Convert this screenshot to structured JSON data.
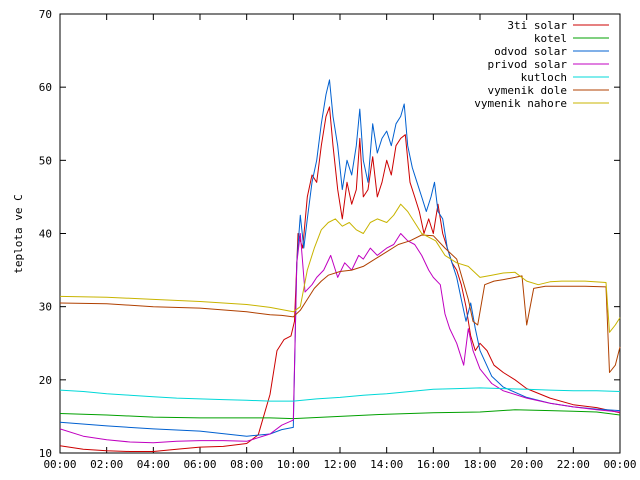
{
  "chart_data": {
    "type": "line",
    "ylabel": "teplota ve C",
    "xlabel": "",
    "xlim": [
      0,
      24
    ],
    "ylim": [
      10,
      70
    ],
    "legend_position": "top-right",
    "grid": false,
    "x_ticks": [
      {
        "value": 0,
        "label": "00:00"
      },
      {
        "value": 2,
        "label": "02:00"
      },
      {
        "value": 4,
        "label": "04:00"
      },
      {
        "value": 6,
        "label": "06:00"
      },
      {
        "value": 8,
        "label": "08:00"
      },
      {
        "value": 10,
        "label": "10:00"
      },
      {
        "value": 12,
        "label": "12:00"
      },
      {
        "value": 14,
        "label": "14:00"
      },
      {
        "value": 16,
        "label": "16:00"
      },
      {
        "value": 18,
        "label": "18:00"
      },
      {
        "value": 20,
        "label": "20:00"
      },
      {
        "value": 22,
        "label": "22:00"
      },
      {
        "value": 24,
        "label": "00:00"
      }
    ],
    "y_ticks": [
      10,
      20,
      30,
      40,
      50,
      60,
      70
    ],
    "series": [
      {
        "name": "3ti solar",
        "color": "#cc0000",
        "points": [
          [
            0,
            11.0
          ],
          [
            1,
            10.5
          ],
          [
            2,
            10.3
          ],
          [
            3,
            10.2
          ],
          [
            4,
            10.2
          ],
          [
            5,
            10.5
          ],
          [
            6,
            10.8
          ],
          [
            7,
            10.9
          ],
          [
            8,
            11.3
          ],
          [
            8.5,
            12.5
          ],
          [
            9,
            18
          ],
          [
            9.3,
            24
          ],
          [
            9.6,
            25.5
          ],
          [
            9.9,
            26
          ],
          [
            10.05,
            28
          ],
          [
            10.2,
            40
          ],
          [
            10.4,
            38
          ],
          [
            10.6,
            45
          ],
          [
            10.8,
            48
          ],
          [
            11.0,
            47
          ],
          [
            11.2,
            52
          ],
          [
            11.4,
            56
          ],
          [
            11.55,
            57.3
          ],
          [
            11.7,
            52
          ],
          [
            11.9,
            46
          ],
          [
            12.1,
            42
          ],
          [
            12.3,
            47
          ],
          [
            12.5,
            44
          ],
          [
            12.7,
            46
          ],
          [
            12.85,
            53
          ],
          [
            13.0,
            45
          ],
          [
            13.2,
            46
          ],
          [
            13.4,
            50.5
          ],
          [
            13.6,
            45
          ],
          [
            13.8,
            47
          ],
          [
            14.0,
            50
          ],
          [
            14.2,
            48
          ],
          [
            14.4,
            52
          ],
          [
            14.6,
            53
          ],
          [
            14.8,
            53.5
          ],
          [
            15.0,
            47
          ],
          [
            15.2,
            45
          ],
          [
            15.4,
            43
          ],
          [
            15.6,
            40
          ],
          [
            15.8,
            42
          ],
          [
            16.0,
            40
          ],
          [
            16.2,
            44
          ],
          [
            16.4,
            40
          ],
          [
            16.6,
            38
          ],
          [
            16.8,
            36
          ],
          [
            17.0,
            35
          ],
          [
            17.2,
            33
          ],
          [
            17.4,
            30
          ],
          [
            17.6,
            26
          ],
          [
            17.8,
            24
          ],
          [
            18.0,
            25
          ],
          [
            18.3,
            24
          ],
          [
            18.6,
            22
          ],
          [
            19,
            21
          ],
          [
            19.5,
            20
          ],
          [
            20,
            18.8
          ],
          [
            21,
            17.5
          ],
          [
            22,
            16.6
          ],
          [
            23,
            16.2
          ],
          [
            24,
            15.5
          ]
        ]
      },
      {
        "name": "kotel",
        "color": "#00a000",
        "points": [
          [
            0,
            15.4
          ],
          [
            2,
            15.2
          ],
          [
            4,
            14.9
          ],
          [
            6,
            14.8
          ],
          [
            8,
            14.8
          ],
          [
            9,
            14.8
          ],
          [
            10,
            14.7
          ],
          [
            12,
            15.0
          ],
          [
            14,
            15.3
          ],
          [
            16,
            15.5
          ],
          [
            18,
            15.6
          ],
          [
            19.5,
            15.9
          ],
          [
            21,
            15.8
          ],
          [
            22,
            15.7
          ],
          [
            23,
            15.6
          ],
          [
            24,
            15.2
          ]
        ]
      },
      {
        "name": "odvod solar",
        "color": "#0060d0",
        "points": [
          [
            0,
            14.2
          ],
          [
            2,
            13.7
          ],
          [
            4,
            13.3
          ],
          [
            6,
            13.0
          ],
          [
            8,
            12.3
          ],
          [
            9,
            12.6
          ],
          [
            9.5,
            13.2
          ],
          [
            10.0,
            13.5
          ],
          [
            10.15,
            36
          ],
          [
            10.3,
            42.5
          ],
          [
            10.45,
            38
          ],
          [
            10.6,
            42
          ],
          [
            10.8,
            47
          ],
          [
            11.0,
            50
          ],
          [
            11.2,
            55
          ],
          [
            11.4,
            59
          ],
          [
            11.55,
            61
          ],
          [
            11.7,
            56
          ],
          [
            11.9,
            52
          ],
          [
            12.1,
            46
          ],
          [
            12.3,
            50
          ],
          [
            12.5,
            48
          ],
          [
            12.7,
            52
          ],
          [
            12.85,
            57
          ],
          [
            13.0,
            50
          ],
          [
            13.2,
            47
          ],
          [
            13.4,
            55
          ],
          [
            13.6,
            51
          ],
          [
            13.8,
            53
          ],
          [
            14.0,
            54
          ],
          [
            14.2,
            52
          ],
          [
            14.4,
            55
          ],
          [
            14.6,
            56
          ],
          [
            14.75,
            57.7
          ],
          [
            14.9,
            52
          ],
          [
            15.1,
            49
          ],
          [
            15.3,
            47
          ],
          [
            15.5,
            45
          ],
          [
            15.7,
            43
          ],
          [
            15.9,
            45
          ],
          [
            16.05,
            47
          ],
          [
            16.2,
            43
          ],
          [
            16.4,
            42
          ],
          [
            16.6,
            38
          ],
          [
            16.8,
            36
          ],
          [
            17.0,
            34
          ],
          [
            17.2,
            31
          ],
          [
            17.4,
            28
          ],
          [
            17.6,
            30.5
          ],
          [
            17.8,
            27
          ],
          [
            18.0,
            24
          ],
          [
            18.5,
            20.5
          ],
          [
            19,
            19
          ],
          [
            20,
            17.6
          ],
          [
            21,
            16.8
          ],
          [
            22,
            16.3
          ],
          [
            23,
            16.0
          ],
          [
            24,
            15.8
          ]
        ]
      },
      {
        "name": "privod solar",
        "color": "#c000c0",
        "points": [
          [
            0,
            13.3
          ],
          [
            1,
            12.3
          ],
          [
            2,
            11.8
          ],
          [
            3,
            11.5
          ],
          [
            4,
            11.4
          ],
          [
            5,
            11.6
          ],
          [
            6,
            11.7
          ],
          [
            7,
            11.7
          ],
          [
            8,
            11.6
          ],
          [
            9,
            12.6
          ],
          [
            9.5,
            13.8
          ],
          [
            10.0,
            14.5
          ],
          [
            10.15,
            36
          ],
          [
            10.3,
            40
          ],
          [
            10.5,
            32
          ],
          [
            10.8,
            33
          ],
          [
            11.0,
            34
          ],
          [
            11.3,
            35
          ],
          [
            11.6,
            37
          ],
          [
            11.9,
            34
          ],
          [
            12.2,
            36
          ],
          [
            12.5,
            35
          ],
          [
            12.8,
            37
          ],
          [
            13.0,
            36.5
          ],
          [
            13.3,
            38
          ],
          [
            13.6,
            37
          ],
          [
            14.0,
            38
          ],
          [
            14.3,
            38.5
          ],
          [
            14.6,
            40
          ],
          [
            14.9,
            39
          ],
          [
            15.2,
            38.5
          ],
          [
            15.5,
            37
          ],
          [
            15.8,
            35
          ],
          [
            16.0,
            34
          ],
          [
            16.3,
            33
          ],
          [
            16.5,
            29
          ],
          [
            16.7,
            27
          ],
          [
            17.0,
            25
          ],
          [
            17.3,
            22
          ],
          [
            17.5,
            27
          ],
          [
            17.7,
            24
          ],
          [
            18.0,
            21.5
          ],
          [
            18.5,
            19.5
          ],
          [
            19,
            18.5
          ],
          [
            20,
            17.5
          ],
          [
            21,
            16.8
          ],
          [
            22,
            16.3
          ],
          [
            23,
            15.9
          ],
          [
            24,
            15.6
          ]
        ]
      },
      {
        "name": "kutloch",
        "color": "#00d8d8",
        "points": [
          [
            0,
            18.6
          ],
          [
            1,
            18.4
          ],
          [
            2,
            18.1
          ],
          [
            3,
            17.9
          ],
          [
            4,
            17.7
          ],
          [
            5,
            17.5
          ],
          [
            6,
            17.4
          ],
          [
            7,
            17.3
          ],
          [
            8,
            17.2
          ],
          [
            9,
            17.1
          ],
          [
            10,
            17.1
          ],
          [
            11,
            17.4
          ],
          [
            12,
            17.6
          ],
          [
            13,
            17.9
          ],
          [
            14,
            18.1
          ],
          [
            15,
            18.4
          ],
          [
            16,
            18.7
          ],
          [
            17,
            18.8
          ],
          [
            18,
            18.9
          ],
          [
            19,
            18.8
          ],
          [
            20,
            18.7
          ],
          [
            21,
            18.6
          ],
          [
            22,
            18.5
          ],
          [
            23,
            18.5
          ],
          [
            24,
            18.4
          ]
        ]
      },
      {
        "name": "vymenik dole",
        "color": "#b04000",
        "points": [
          [
            0,
            30.5
          ],
          [
            2,
            30.4
          ],
          [
            4,
            30.0
          ],
          [
            6,
            29.8
          ],
          [
            8,
            29.3
          ],
          [
            9,
            28.9
          ],
          [
            9.5,
            28.8
          ],
          [
            10,
            28.6
          ],
          [
            10.3,
            29.5
          ],
          [
            10.6,
            31
          ],
          [
            10.9,
            32.5
          ],
          [
            11.2,
            33.5
          ],
          [
            11.5,
            34.3
          ],
          [
            12,
            34.8
          ],
          [
            12.5,
            35
          ],
          [
            13,
            35.5
          ],
          [
            13.5,
            36.5
          ],
          [
            14,
            37.5
          ],
          [
            14.5,
            38.5
          ],
          [
            15,
            39
          ],
          [
            15.5,
            39.8
          ],
          [
            16,
            39.7
          ],
          [
            16.5,
            38
          ],
          [
            17,
            36.5
          ],
          [
            17.5,
            31
          ],
          [
            17.7,
            28
          ],
          [
            17.9,
            27.5
          ],
          [
            18.2,
            33
          ],
          [
            18.6,
            33.5
          ],
          [
            19,
            33.7
          ],
          [
            19.5,
            34
          ],
          [
            19.8,
            34.2
          ],
          [
            20.0,
            27.5
          ],
          [
            20.3,
            32.5
          ],
          [
            20.8,
            32.8
          ],
          [
            21.5,
            32.8
          ],
          [
            22.5,
            32.8
          ],
          [
            23.4,
            32.7
          ],
          [
            23.55,
            21
          ],
          [
            23.8,
            22
          ],
          [
            24,
            24.5
          ]
        ]
      },
      {
        "name": "vymenik nahore",
        "color": "#c8b400",
        "points": [
          [
            0,
            31.4
          ],
          [
            2,
            31.3
          ],
          [
            4,
            31.0
          ],
          [
            6,
            30.7
          ],
          [
            8,
            30.3
          ],
          [
            9,
            29.9
          ],
          [
            10,
            29.3
          ],
          [
            10.3,
            30
          ],
          [
            10.6,
            35
          ],
          [
            10.9,
            38
          ],
          [
            11.2,
            40.5
          ],
          [
            11.5,
            41.5
          ],
          [
            11.8,
            42
          ],
          [
            12.1,
            41
          ],
          [
            12.4,
            41.5
          ],
          [
            12.7,
            40.5
          ],
          [
            13,
            40
          ],
          [
            13.3,
            41.5
          ],
          [
            13.6,
            42
          ],
          [
            14,
            41.5
          ],
          [
            14.3,
            42.5
          ],
          [
            14.6,
            44
          ],
          [
            14.9,
            43
          ],
          [
            15.2,
            41.5
          ],
          [
            15.5,
            40
          ],
          [
            15.8,
            39.5
          ],
          [
            16.1,
            39
          ],
          [
            16.5,
            37
          ],
          [
            17,
            36
          ],
          [
            17.5,
            35.5
          ],
          [
            18,
            34
          ],
          [
            18.5,
            34.3
          ],
          [
            19,
            34.6
          ],
          [
            19.5,
            34.7
          ],
          [
            20,
            33.5
          ],
          [
            20.5,
            33
          ],
          [
            21,
            33.4
          ],
          [
            21.5,
            33.5
          ],
          [
            22.5,
            33.5
          ],
          [
            23.4,
            33.3
          ],
          [
            23.55,
            26.5
          ],
          [
            23.8,
            27.5
          ],
          [
            24,
            28.5
          ]
        ]
      }
    ]
  }
}
